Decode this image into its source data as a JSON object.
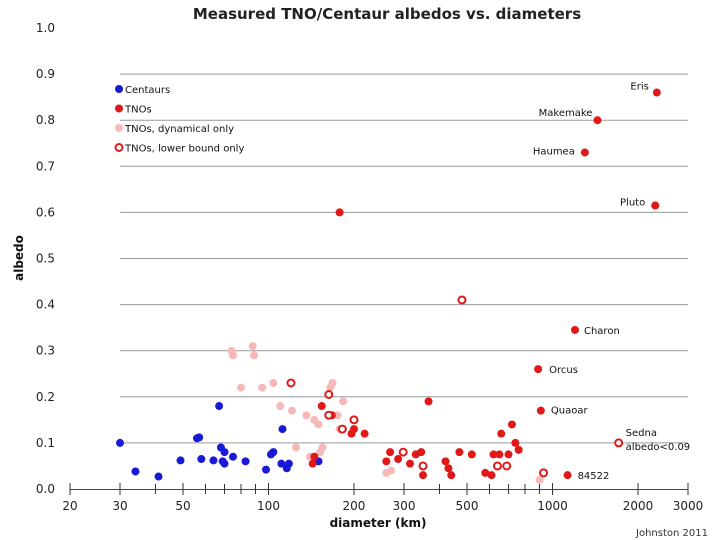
{
  "chart_data": {
    "type": "scatter",
    "title": "Measured TNO/Centaur albedos vs. diameters",
    "xlabel": "diameter (km)",
    "ylabel": "albedo",
    "xscale": "log",
    "xlim": [
      20,
      3000
    ],
    "ylim": [
      0,
      1.0
    ],
    "x_ticks": [
      20,
      30,
      50,
      100,
      200,
      300,
      500,
      1000,
      2000,
      3000
    ],
    "x_tick_labels": [
      "20",
      "30",
      "50",
      "100",
      "200",
      "300",
      "500",
      "1000",
      "2000",
      "3000"
    ],
    "x_minor_ticks": [
      40,
      60,
      70,
      80,
      90,
      400,
      600,
      700,
      800,
      900
    ],
    "y_ticks": [
      0.0,
      0.1,
      0.2,
      0.3,
      0.4,
      0.5,
      0.6,
      0.7,
      0.8,
      0.9,
      1.0
    ],
    "y_tick_labels": [
      "0.0",
      "0.1",
      "0.2",
      "0.3",
      "0.4",
      "0.5",
      "0.6",
      "0.7",
      "0.8",
      "0.9",
      "1.0"
    ],
    "grid": "horizontal",
    "legend": {
      "placement": "top-left",
      "entries": [
        {
          "label": "Centaurs",
          "series": "Centaurs"
        },
        {
          "label": "TNOs",
          "series": "TNOs"
        },
        {
          "label": "TNOs, dynamical only",
          "series": "TNOs, dynamical only"
        },
        {
          "label": "TNOs, lower bound only",
          "series": "TNOs, lower bound only"
        }
      ]
    },
    "credit": "Johnston 2011",
    "series": [
      {
        "name": "Centaurs",
        "color": "#1a1ad6",
        "marker": "filled",
        "points": [
          [
            30,
            0.1
          ],
          [
            34,
            0.038
          ],
          [
            41,
            0.027
          ],
          [
            49,
            0.062
          ],
          [
            56,
            0.11
          ],
          [
            57,
            0.112
          ],
          [
            58,
            0.065
          ],
          [
            64,
            0.062
          ],
          [
            67,
            0.18
          ],
          [
            68,
            0.09
          ],
          [
            69,
            0.06
          ],
          [
            70,
            0.08
          ],
          [
            70,
            0.055
          ],
          [
            75,
            0.07
          ],
          [
            83,
            0.06
          ],
          [
            98,
            0.042
          ],
          [
            102,
            0.075
          ],
          [
            104,
            0.08
          ],
          [
            111,
            0.055
          ],
          [
            112,
            0.13
          ],
          [
            116,
            0.045
          ],
          [
            118,
            0.055
          ],
          [
            150,
            0.06
          ]
        ]
      },
      {
        "name": "TNOs",
        "color": "#e01818",
        "marker": "filled",
        "points": [
          [
            2330,
            0.86
          ],
          [
            1440,
            0.8
          ],
          [
            1300,
            0.73
          ],
          [
            2300,
            0.615
          ],
          [
            178,
            0.6
          ],
          [
            1200,
            0.345
          ],
          [
            890,
            0.26
          ],
          [
            910,
            0.17
          ],
          [
            1130,
            0.03
          ],
          [
            366,
            0.19
          ],
          [
            143,
            0.055
          ],
          [
            145,
            0.07
          ],
          [
            154,
            0.18
          ],
          [
            167,
            0.16
          ],
          [
            196,
            0.12
          ],
          [
            200,
            0.13
          ],
          [
            218,
            0.12
          ],
          [
            260,
            0.06
          ],
          [
            268,
            0.08
          ],
          [
            286,
            0.065
          ],
          [
            315,
            0.055
          ],
          [
            330,
            0.075
          ],
          [
            345,
            0.08
          ],
          [
            350,
            0.03
          ],
          [
            420,
            0.06
          ],
          [
            430,
            0.045
          ],
          [
            440,
            0.03
          ],
          [
            470,
            0.08
          ],
          [
            520,
            0.075
          ],
          [
            580,
            0.035
          ],
          [
            610,
            0.03
          ],
          [
            620,
            0.075
          ],
          [
            650,
            0.075
          ],
          [
            660,
            0.12
          ],
          [
            700,
            0.075
          ],
          [
            720,
            0.14
          ],
          [
            740,
            0.1
          ],
          [
            760,
            0.085
          ]
        ]
      },
      {
        "name": "TNOs, dynamical only",
        "color": "#f7b8b8",
        "marker": "filled",
        "points": [
          [
            74,
            0.3
          ],
          [
            75,
            0.29
          ],
          [
            80,
            0.22
          ],
          [
            88,
            0.31
          ],
          [
            89,
            0.29
          ],
          [
            95,
            0.22
          ],
          [
            104,
            0.23
          ],
          [
            110,
            0.18
          ],
          [
            121,
            0.17
          ],
          [
            125,
            0.09
          ],
          [
            136,
            0.16
          ],
          [
            140,
            0.07
          ],
          [
            145,
            0.15
          ],
          [
            150,
            0.14
          ],
          [
            152,
            0.08
          ],
          [
            155,
            0.09
          ],
          [
            165,
            0.22
          ],
          [
            168,
            0.23
          ],
          [
            175,
            0.16
          ],
          [
            178,
            0.13
          ],
          [
            183,
            0.19
          ],
          [
            260,
            0.035
          ],
          [
            270,
            0.04
          ],
          [
            900,
            0.02
          ]
        ]
      },
      {
        "name": "TNOs, lower bound only",
        "color": "#e01818",
        "marker": "open",
        "points": [
          [
            120,
            0.23
          ],
          [
            163,
            0.205
          ],
          [
            163,
            0.16
          ],
          [
            182,
            0.13
          ],
          [
            200,
            0.15
          ],
          [
            298,
            0.08
          ],
          [
            350,
            0.05
          ],
          [
            480,
            0.41
          ],
          [
            640,
            0.05
          ],
          [
            690,
            0.05
          ],
          [
            930,
            0.035
          ],
          [
            1710,
            0.1
          ]
        ]
      }
    ],
    "annotations": [
      {
        "text": "Eris",
        "x": 2330,
        "y": 0.86
      },
      {
        "text": "Makemake",
        "x": 1440,
        "y": 0.8
      },
      {
        "text": "Haumea",
        "x": 1300,
        "y": 0.73
      },
      {
        "text": "Pluto",
        "x": 2300,
        "y": 0.615
      },
      {
        "text": "Charon",
        "x": 1200,
        "y": 0.345
      },
      {
        "text": "Orcus",
        "x": 890,
        "y": 0.26
      },
      {
        "text": "Quaoar",
        "x": 910,
        "y": 0.17
      },
      {
        "text": "Sedna",
        "x": 1710,
        "y": 0.1
      },
      {
        "text": "albedo<0.09",
        "x": 1710,
        "y": 0.1
      },
      {
        "text": "84522",
        "x": 1130,
        "y": 0.03
      }
    ]
  }
}
